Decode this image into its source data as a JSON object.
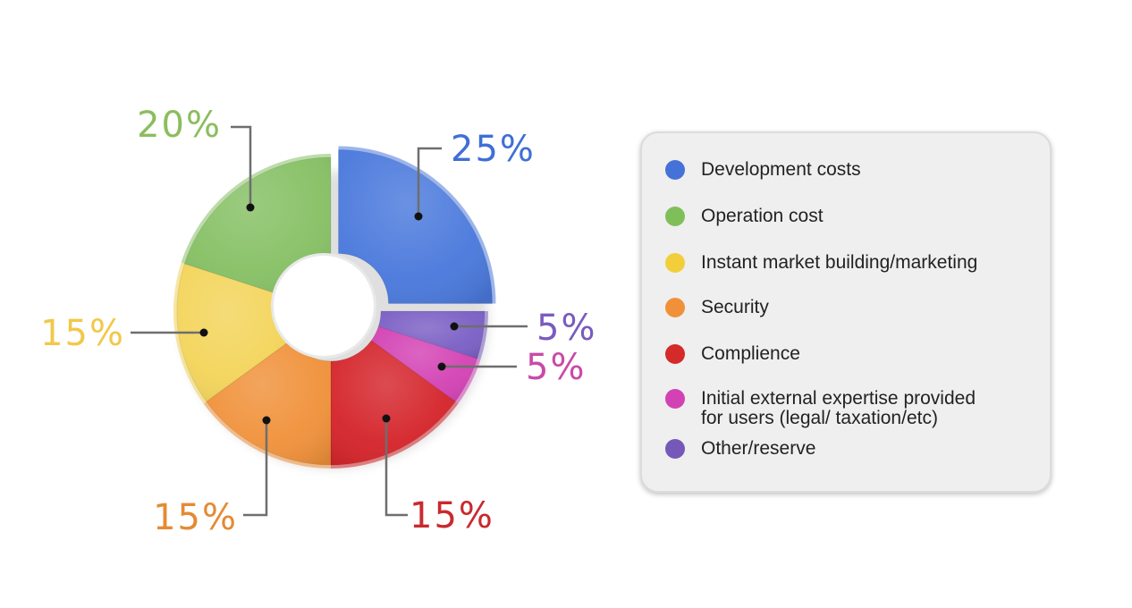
{
  "chart_data": {
    "type": "pie",
    "variant": "donut",
    "slices": [
      {
        "label": "Development costs",
        "value": 25,
        "value_label": "25%",
        "color": "#4a79dc",
        "label_color": "#3f6fd6"
      },
      {
        "label": "Other/reserve",
        "value": 5,
        "value_label": "5%",
        "color": "#7a5fc4",
        "label_color": "#7a5bbf"
      },
      {
        "label": "Initial external expertise provided\nfor users (legal/ taxation/etc)",
        "value": 5,
        "value_label": "5%",
        "color": "#d342b4",
        "label_color": "#c94aa8"
      },
      {
        "label": "Complience",
        "value": 15,
        "value_label": "15%",
        "color": "#d4242a",
        "label_color": "#c92a2e"
      },
      {
        "label": "Security",
        "value": 15,
        "value_label": "15%",
        "color": "#f0913a",
        "label_color": "#e58a33"
      },
      {
        "label": "Instant market building/marketing",
        "value": 15,
        "value_label": "15%",
        "color": "#f3d45a",
        "label_color": "#f2c84a"
      },
      {
        "label": "Operation cost",
        "value": 20,
        "value_label": "20%",
        "color": "#86c064",
        "label_color": "#8bbd5e"
      }
    ],
    "legend_position": "right"
  },
  "legend": {
    "items": [
      {
        "label": "Development costs",
        "color": "#4472d8"
      },
      {
        "label": "Operation cost",
        "color": "#7fbf5a"
      },
      {
        "label": "Instant market building/marketing",
        "color": "#f2cf3a"
      },
      {
        "label": "Security",
        "color": "#f0913a"
      },
      {
        "label": "Complience",
        "color": "#d42a2a"
      },
      {
        "label": "Initial external expertise provided\nfor users (legal/ taxation/etc)",
        "color": "#d342b4"
      },
      {
        "label": "Other/reserve",
        "color": "#7559b8"
      }
    ]
  }
}
